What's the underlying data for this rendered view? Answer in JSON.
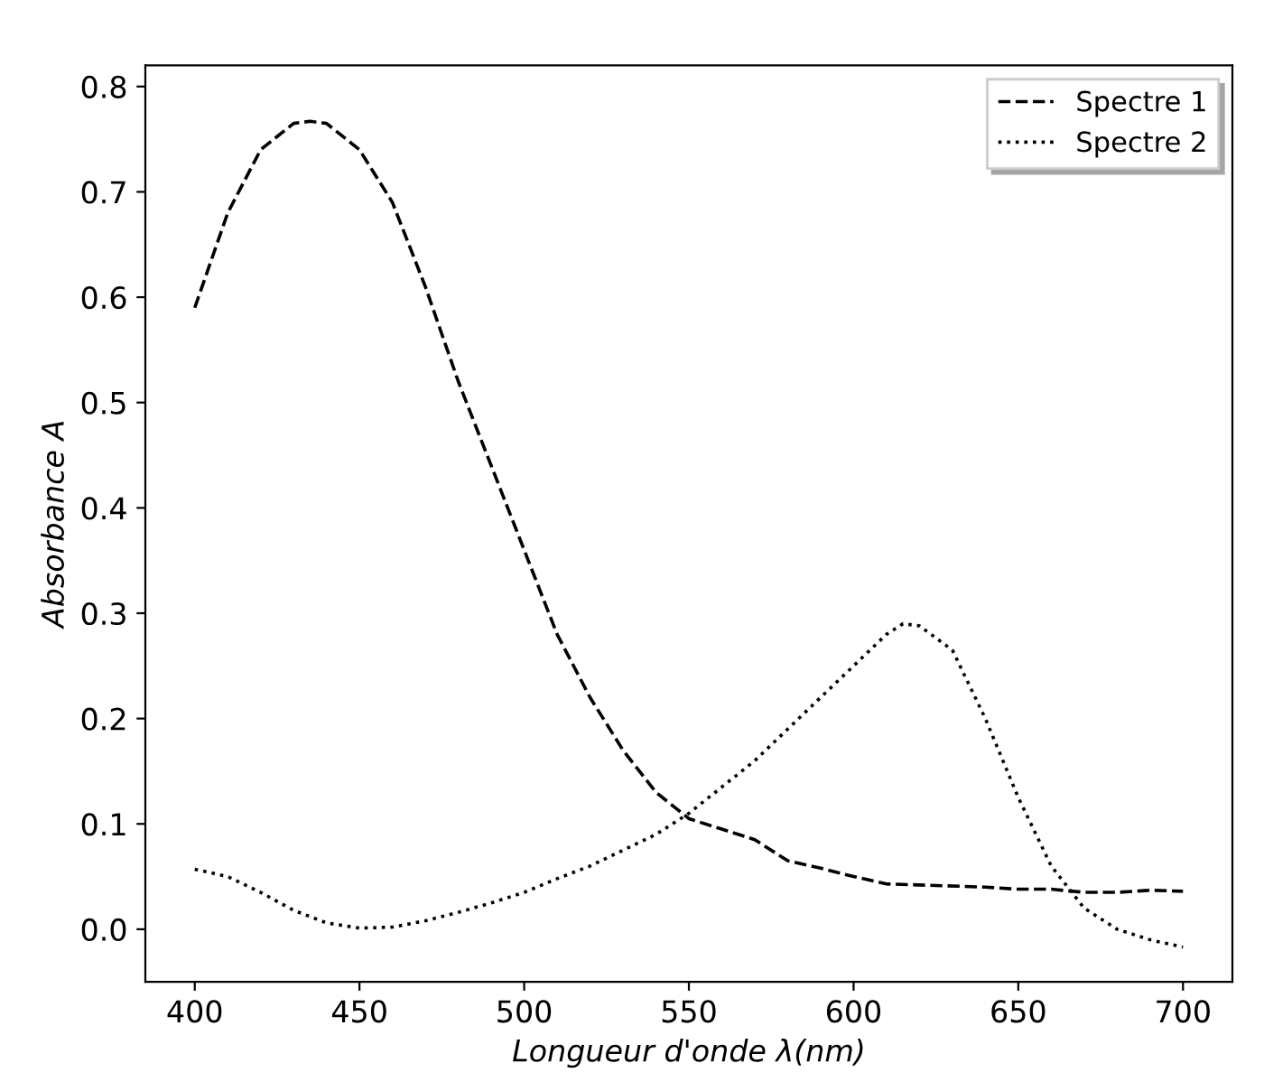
{
  "chart_data": {
    "type": "line",
    "xlabel": "Longueur d'onde λ(nm)",
    "ylabel": "Absorbance A",
    "xlim": [
      385,
      715
    ],
    "ylim": [
      -0.05,
      0.82
    ],
    "xticks": [
      400,
      450,
      500,
      550,
      600,
      650,
      700
    ],
    "yticks": [
      {
        "value": 0,
        "label": "0.0"
      },
      0.1,
      0.2,
      0.3,
      0.4,
      0.5,
      0.6,
      0.7,
      0.8
    ],
    "grid": false,
    "legend": "top right",
    "marker": "none",
    "series": [
      {
        "name": "Spectre 1",
        "color": "#000000",
        "line_style": "dashed",
        "x": [
          400,
          410,
          420,
          430,
          435,
          440,
          450,
          460,
          470,
          480,
          490,
          500,
          510,
          520,
          530,
          540,
          550,
          560,
          570,
          580,
          590,
          600,
          610,
          620,
          640,
          650,
          660,
          670,
          680,
          690,
          700
        ],
        "values": [
          0.59,
          0.68,
          0.74,
          0.765,
          0.767,
          0.765,
          0.74,
          0.69,
          0.61,
          0.52,
          0.44,
          0.36,
          0.28,
          0.22,
          0.17,
          0.13,
          0.105,
          0.095,
          0.085,
          0.065,
          0.058,
          0.05,
          0.043,
          0.042,
          0.04,
          0.038,
          0.038,
          0.035,
          0.035,
          0.037,
          0.036
        ]
      },
      {
        "name": "Spectre 2",
        "color": "#000000",
        "line_style": "dotted",
        "x": [
          400,
          410,
          420,
          430,
          440,
          450,
          460,
          470,
          480,
          490,
          500,
          510,
          520,
          530,
          540,
          550,
          560,
          570,
          580,
          590,
          600,
          610,
          615,
          620,
          630,
          640,
          650,
          660,
          670,
          680,
          690,
          700
        ],
        "values": [
          0.057,
          0.05,
          0.035,
          0.018,
          0.006,
          0.001,
          0.002,
          0.008,
          0.016,
          0.025,
          0.035,
          0.048,
          0.06,
          0.075,
          0.09,
          0.11,
          0.135,
          0.16,
          0.19,
          0.22,
          0.25,
          0.28,
          0.29,
          0.288,
          0.265,
          0.2,
          0.125,
          0.06,
          0.02,
          0.0,
          -0.01,
          -0.017
        ]
      }
    ]
  }
}
